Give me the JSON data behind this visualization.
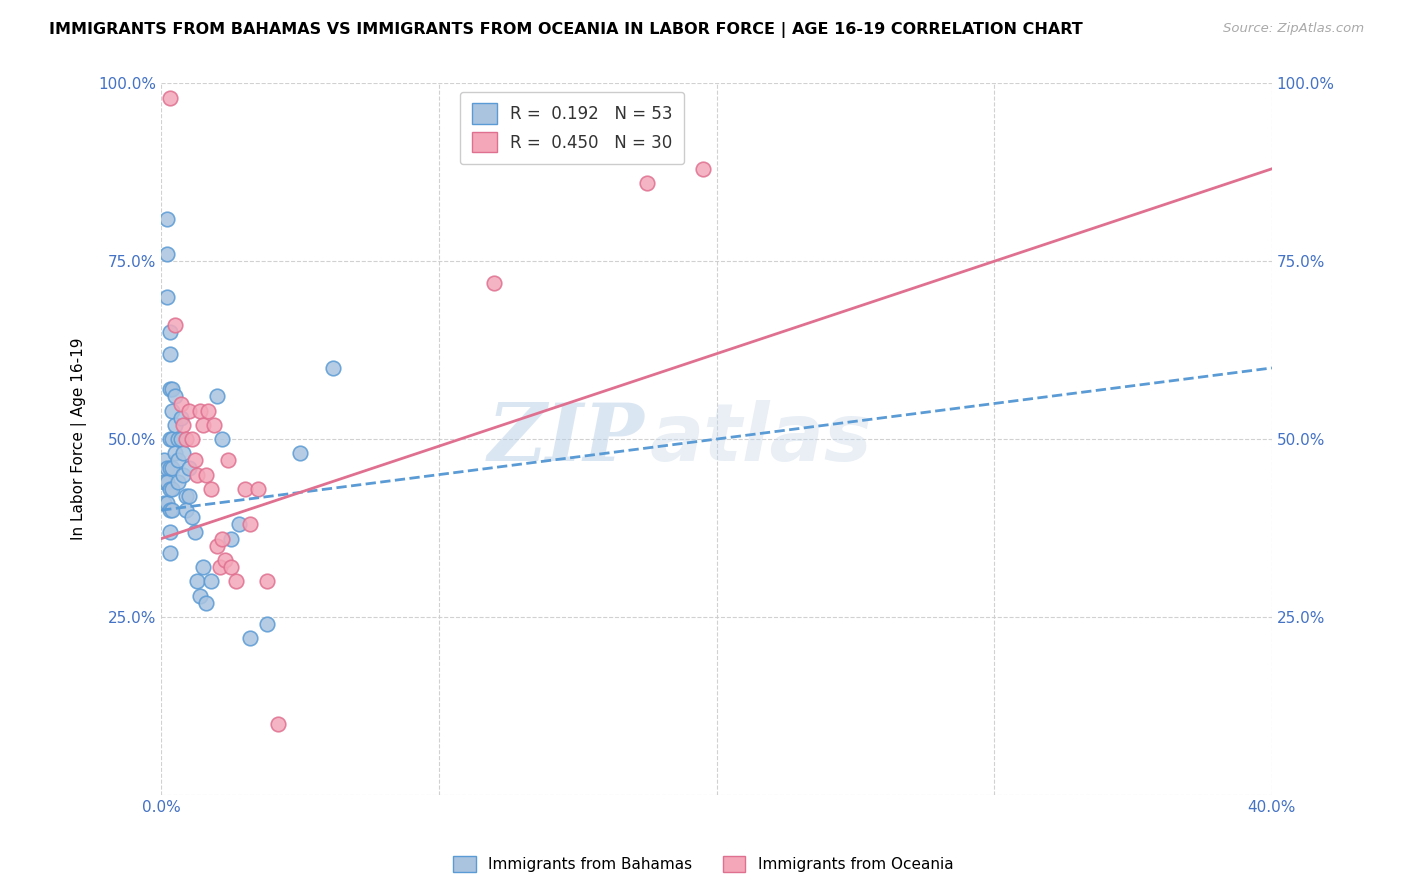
{
  "title": "IMMIGRANTS FROM BAHAMAS VS IMMIGRANTS FROM OCEANIA IN LABOR FORCE | AGE 16-19 CORRELATION CHART",
  "source_text": "Source: ZipAtlas.com",
  "ylabel": "In Labor Force | Age 16-19",
  "xlim": [
    0.0,
    0.4
  ],
  "ylim": [
    0.0,
    1.0
  ],
  "yticks": [
    0.0,
    0.25,
    0.5,
    0.75,
    1.0
  ],
  "ytick_labels": [
    "",
    "25.0%",
    "50.0%",
    "75.0%",
    "100.0%"
  ],
  "xticks": [
    0.0,
    0.1,
    0.2,
    0.3,
    0.4
  ],
  "xtick_labels": [
    "0.0%",
    "",
    "",
    "",
    "40.0%"
  ],
  "R_bahamas": 0.192,
  "N_bahamas": 53,
  "R_oceania": 0.45,
  "N_oceania": 30,
  "color_bahamas": "#aac4e0",
  "color_oceania": "#f4a7b9",
  "line_color_bahamas": "#5b9bd5",
  "line_color_oceania": "#e07090",
  "watermark_left": "ZIP",
  "watermark_right": "atlas",
  "bahamas_x": [
    0.001,
    0.001,
    0.001,
    0.002,
    0.002,
    0.002,
    0.002,
    0.002,
    0.002,
    0.003,
    0.003,
    0.003,
    0.003,
    0.003,
    0.003,
    0.003,
    0.003,
    0.003,
    0.004,
    0.004,
    0.004,
    0.004,
    0.004,
    0.004,
    0.005,
    0.005,
    0.005,
    0.006,
    0.006,
    0.006,
    0.007,
    0.007,
    0.008,
    0.008,
    0.009,
    0.009,
    0.01,
    0.01,
    0.011,
    0.012,
    0.013,
    0.014,
    0.015,
    0.016,
    0.018,
    0.02,
    0.022,
    0.025,
    0.028,
    0.032,
    0.038,
    0.05,
    0.062
  ],
  "bahamas_y": [
    0.47,
    0.44,
    0.41,
    0.81,
    0.76,
    0.7,
    0.46,
    0.44,
    0.41,
    0.65,
    0.62,
    0.57,
    0.5,
    0.46,
    0.43,
    0.4,
    0.37,
    0.34,
    0.57,
    0.54,
    0.5,
    0.46,
    0.43,
    0.4,
    0.56,
    0.52,
    0.48,
    0.5,
    0.47,
    0.44,
    0.53,
    0.5,
    0.48,
    0.45,
    0.42,
    0.4,
    0.46,
    0.42,
    0.39,
    0.37,
    0.3,
    0.28,
    0.32,
    0.27,
    0.3,
    0.56,
    0.5,
    0.36,
    0.38,
    0.22,
    0.24,
    0.48,
    0.6
  ],
  "oceania_x": [
    0.003,
    0.005,
    0.007,
    0.008,
    0.009,
    0.01,
    0.011,
    0.012,
    0.013,
    0.014,
    0.015,
    0.016,
    0.017,
    0.018,
    0.019,
    0.02,
    0.021,
    0.022,
    0.023,
    0.024,
    0.025,
    0.027,
    0.03,
    0.032,
    0.035,
    0.038,
    0.042,
    0.12,
    0.175,
    0.195
  ],
  "oceania_y": [
    0.98,
    0.66,
    0.55,
    0.52,
    0.5,
    0.54,
    0.5,
    0.47,
    0.45,
    0.54,
    0.52,
    0.45,
    0.54,
    0.43,
    0.52,
    0.35,
    0.32,
    0.36,
    0.33,
    0.47,
    0.32,
    0.3,
    0.43,
    0.38,
    0.43,
    0.3,
    0.1,
    0.72,
    0.86,
    0.88
  ],
  "line_bahamas_x0": 0.0,
  "line_bahamas_y0": 0.4,
  "line_bahamas_x1": 0.4,
  "line_bahamas_y1": 0.6,
  "line_oceania_x0": 0.0,
  "line_oceania_y0": 0.36,
  "line_oceania_x1": 0.4,
  "line_oceania_y1": 0.88
}
